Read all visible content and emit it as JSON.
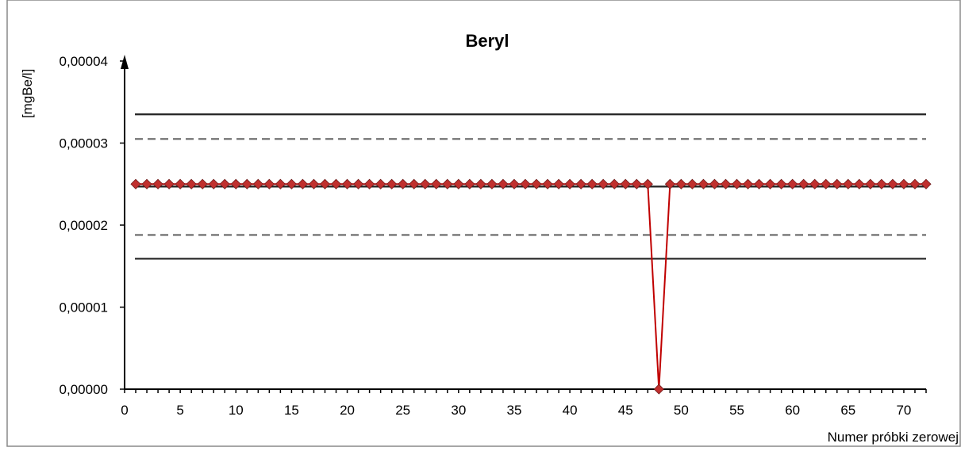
{
  "chart_data": {
    "type": "line",
    "title": "Beryl",
    "ylabel": "[mgBe/l]",
    "xlabel": "Numer próbki zerowej",
    "xlim": [
      0,
      72
    ],
    "ylim": [
      0,
      4e-05
    ],
    "x_ticks": [
      0,
      5,
      10,
      15,
      20,
      25,
      30,
      35,
      40,
      45,
      50,
      55,
      60,
      65,
      70
    ],
    "x_tick_labels": [
      "0",
      "5",
      "10",
      "15",
      "20",
      "25",
      "30",
      "35",
      "40",
      "45",
      "50",
      "55",
      "60",
      "65",
      "70"
    ],
    "y_ticks": [
      0,
      1e-05,
      2e-05,
      3e-05,
      4e-05
    ],
    "y_tick_labels": [
      "0,00000",
      "0,00001",
      "0,00002",
      "0,00003",
      "0,00004"
    ],
    "grid": false,
    "legend": "none",
    "reference_lines": [
      {
        "kind": "upper-control-limit",
        "style": "solid",
        "y": 3.35e-05
      },
      {
        "kind": "upper-warning-limit",
        "style": "dashed",
        "y": 3.05e-05
      },
      {
        "kind": "center-line",
        "style": "solid",
        "y": 2.47e-05
      },
      {
        "kind": "lower-warning-limit",
        "style": "dashed",
        "y": 1.88e-05
      },
      {
        "kind": "lower-control-limit",
        "style": "solid",
        "y": 1.59e-05
      }
    ],
    "series": [
      {
        "color": "#c00000",
        "marker_color": "#c0302e",
        "x": [
          1,
          2,
          3,
          4,
          5,
          6,
          7,
          8,
          9,
          10,
          11,
          12,
          13,
          14,
          15,
          16,
          17,
          18,
          19,
          20,
          21,
          22,
          23,
          24,
          25,
          26,
          27,
          28,
          29,
          30,
          31,
          32,
          33,
          34,
          35,
          36,
          37,
          38,
          39,
          40,
          41,
          42,
          43,
          44,
          45,
          46,
          47,
          48,
          49,
          50,
          51,
          52,
          53,
          54,
          55,
          56,
          57,
          58,
          59,
          60,
          61,
          62,
          63,
          64,
          65,
          66,
          67,
          68,
          69,
          70,
          71,
          72
        ],
        "values": [
          2.5e-05,
          2.5e-05,
          2.5e-05,
          2.5e-05,
          2.5e-05,
          2.5e-05,
          2.5e-05,
          2.5e-05,
          2.5e-05,
          2.5e-05,
          2.5e-05,
          2.5e-05,
          2.5e-05,
          2.5e-05,
          2.5e-05,
          2.5e-05,
          2.5e-05,
          2.5e-05,
          2.5e-05,
          2.5e-05,
          2.5e-05,
          2.5e-05,
          2.5e-05,
          2.5e-05,
          2.5e-05,
          2.5e-05,
          2.5e-05,
          2.5e-05,
          2.5e-05,
          2.5e-05,
          2.5e-05,
          2.5e-05,
          2.5e-05,
          2.5e-05,
          2.5e-05,
          2.5e-05,
          2.5e-05,
          2.5e-05,
          2.5e-05,
          2.5e-05,
          2.5e-05,
          2.5e-05,
          2.5e-05,
          2.5e-05,
          2.5e-05,
          2.5e-05,
          2.5e-05,
          0,
          2.5e-05,
          2.5e-05,
          2.5e-05,
          2.5e-05,
          2.5e-05,
          2.5e-05,
          2.5e-05,
          2.5e-05,
          2.5e-05,
          2.5e-05,
          2.5e-05,
          2.5e-05,
          2.5e-05,
          2.5e-05,
          2.5e-05,
          2.5e-05,
          2.5e-05,
          2.5e-05,
          2.5e-05,
          2.5e-05,
          2.5e-05,
          2.5e-05,
          2.5e-05,
          2.5e-05
        ]
      }
    ]
  }
}
